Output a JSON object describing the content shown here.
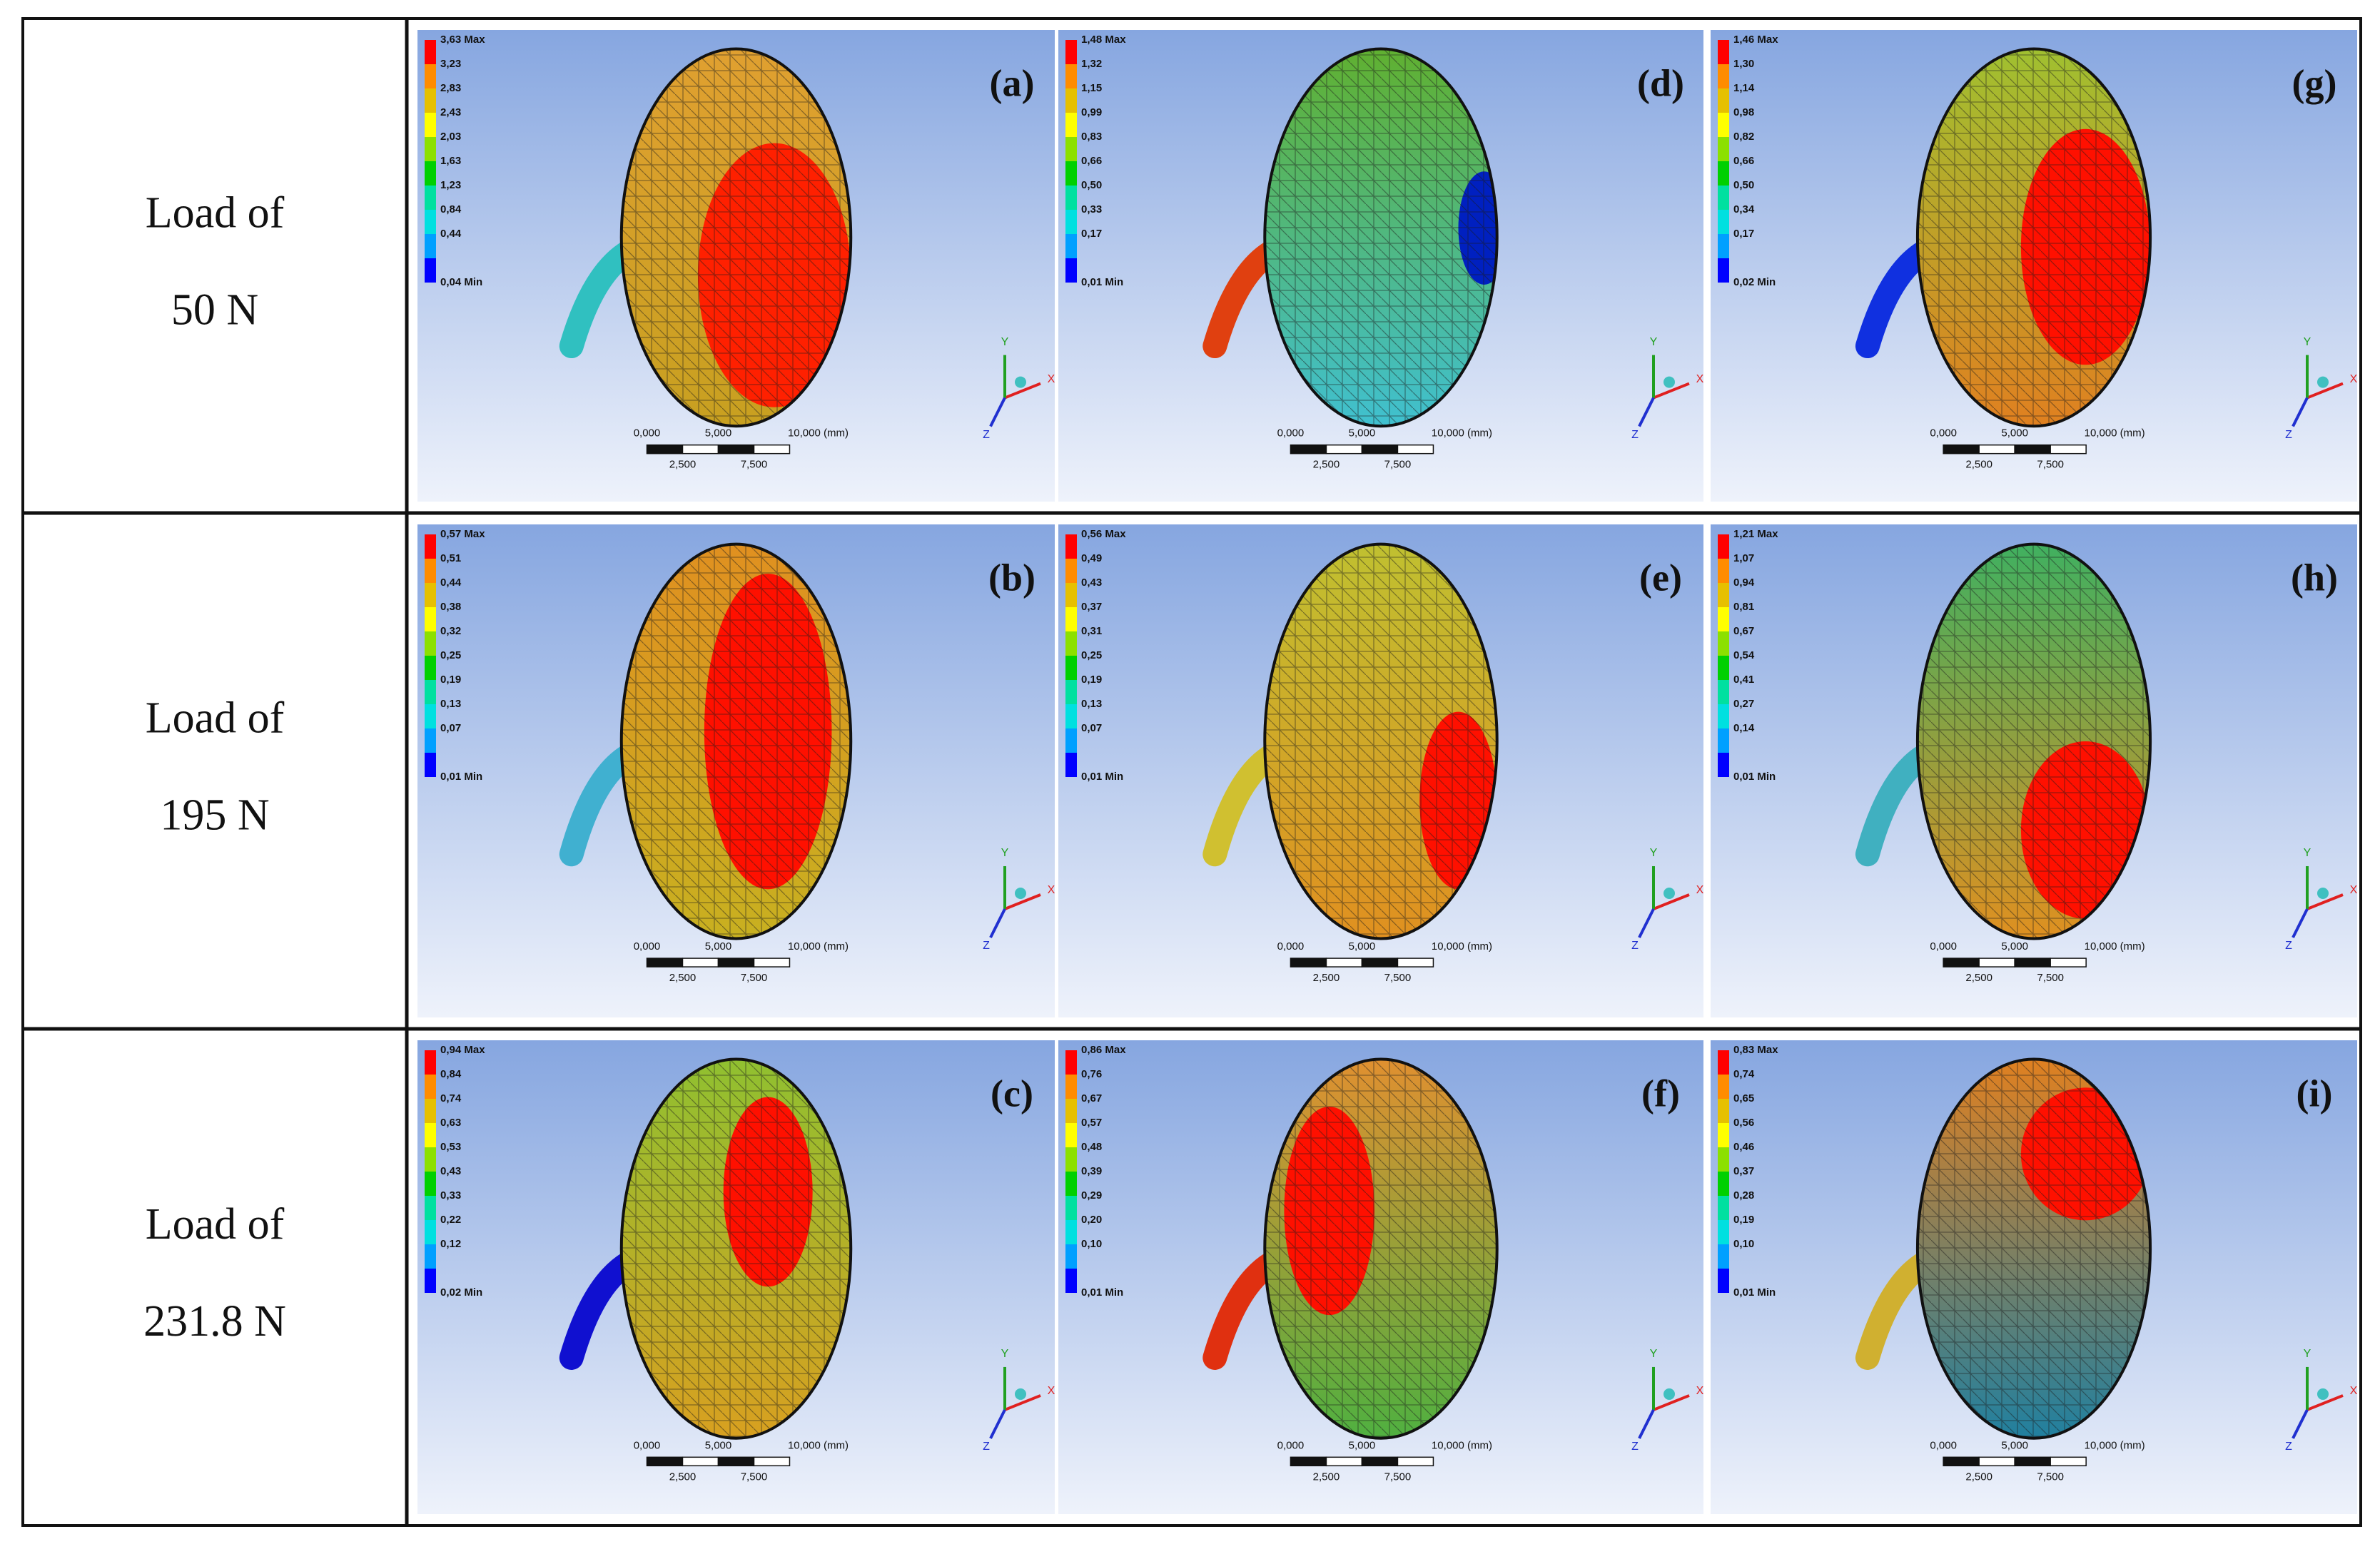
{
  "rows": [
    {
      "label": [
        "Load of",
        "50 N"
      ],
      "panels": [
        {
          "letter": "(a)",
          "legend": [
            "3,63 Max",
            "3,23",
            "2,83",
            "2,43",
            "2,03",
            "1,63",
            "1,23",
            "0,84",
            "0,44",
            "0,04 Min"
          ]
        },
        {
          "letter": "(d)",
          "legend": [
            "1,48 Max",
            "1,32",
            "1,15",
            "0,99",
            "0,83",
            "0,66",
            "0,50",
            "0,33",
            "0,17",
            "0,01 Min"
          ]
        },
        {
          "letter": "(g)",
          "legend": [
            "1,46 Max",
            "1,30",
            "1,14",
            "0,98",
            "0,82",
            "0,66",
            "0,50",
            "0,34",
            "0,17",
            "0,02 Min"
          ]
        }
      ]
    },
    {
      "label": [
        "Load of",
        "195 N"
      ],
      "panels": [
        {
          "letter": "(b)",
          "legend": [
            "0,57 Max",
            "0,51",
            "0,44",
            "0,38",
            "0,32",
            "0,25",
            "0,19",
            "0,13",
            "0,07",
            "0,01 Min"
          ]
        },
        {
          "letter": "(e)",
          "legend": [
            "0,56 Max",
            "0,49",
            "0,43",
            "0,37",
            "0,31",
            "0,25",
            "0,19",
            "0,13",
            "0,07",
            "0,01 Min"
          ]
        },
        {
          "letter": "(h)",
          "legend": [
            "1,21 Max",
            "1,07",
            "0,94",
            "0,81",
            "0,67",
            "0,54",
            "0,41",
            "0,27",
            "0,14",
            "0,01 Min"
          ]
        }
      ]
    },
    {
      "label": [
        "Load of",
        "231.8 N"
      ],
      "panels": [
        {
          "letter": "(c)",
          "legend": [
            "0,94 Max",
            "0,84",
            "0,74",
            "0,63",
            "0,53",
            "0,43",
            "0,33",
            "0,22",
            "0,12",
            "0,02 Min"
          ]
        },
        {
          "letter": "(f)",
          "legend": [
            "0,86 Max",
            "0,76",
            "0,67",
            "0,57",
            "0,48",
            "0,39",
            "0,29",
            "0,20",
            "0,10",
            "0,01 Min"
          ]
        },
        {
          "letter": "(i)",
          "legend": [
            "0,83 Max",
            "0,74",
            "0,65",
            "0,56",
            "0,46",
            "0,37",
            "0,28",
            "0,19",
            "0,10",
            "0,01 Min"
          ]
        }
      ]
    }
  ],
  "scale_bar": {
    "top": [
      "0,000",
      "5,000",
      "10,000 (mm)"
    ],
    "bottom": [
      "2,500",
      "7,500"
    ]
  },
  "axis_labels": [
    "X",
    "Y",
    "Z"
  ]
}
